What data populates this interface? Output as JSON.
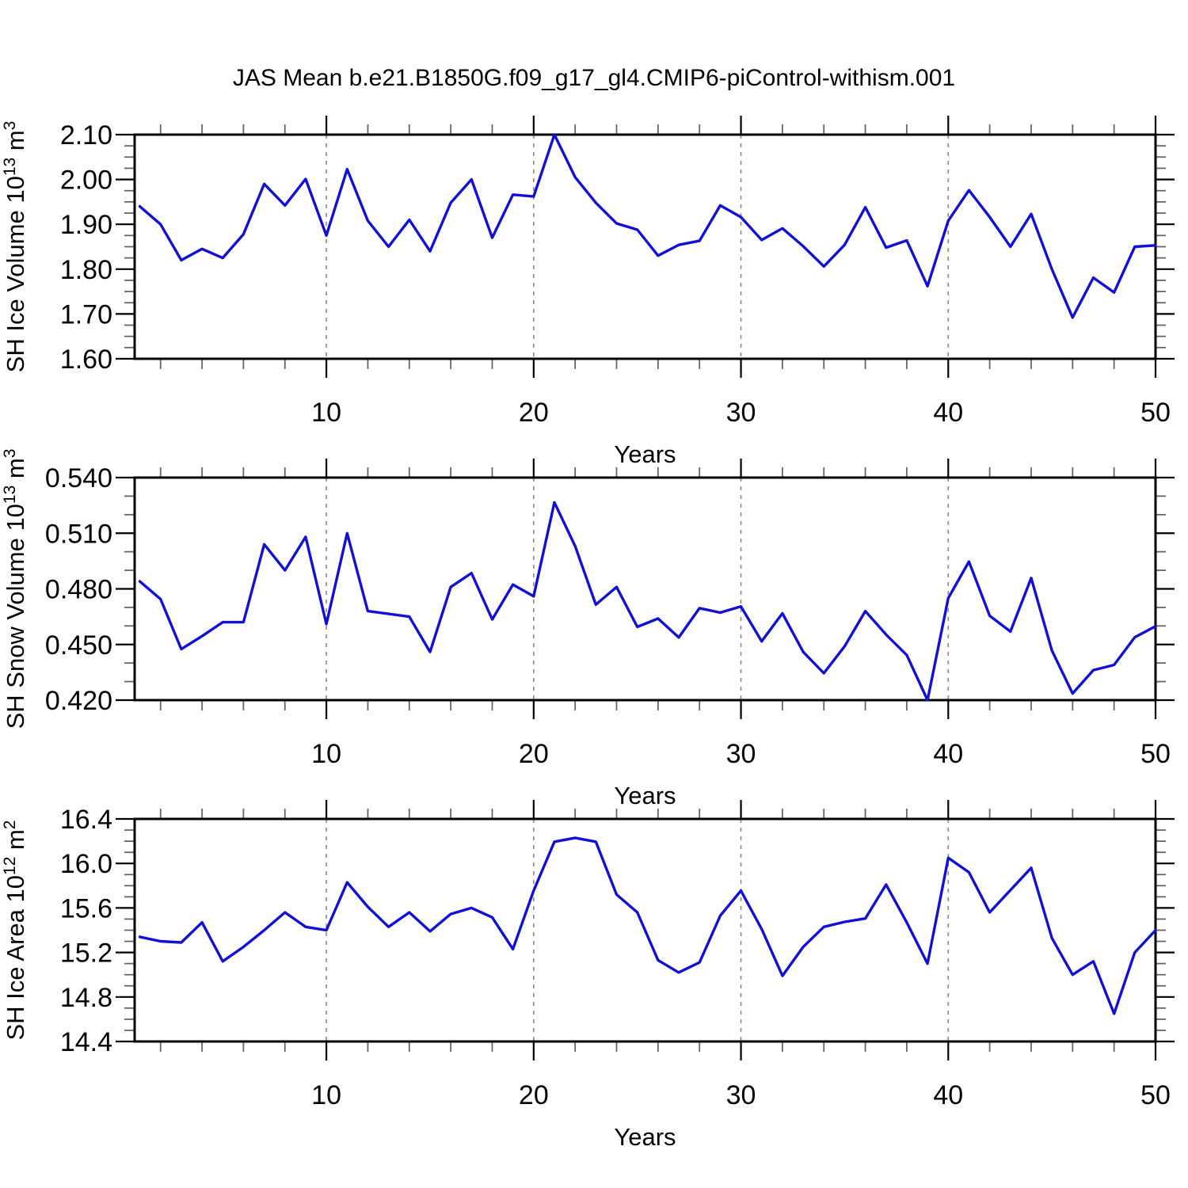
{
  "chart_data": {
    "type": "line",
    "title": "JAS Mean b.e21.B1850G.f09_g17_gl4.CMIP6-piControl-withism.001",
    "xlabel": "Years",
    "x": [
      1,
      2,
      3,
      4,
      5,
      6,
      7,
      8,
      9,
      10,
      11,
      12,
      13,
      14,
      15,
      16,
      17,
      18,
      19,
      20,
      21,
      22,
      23,
      24,
      25,
      26,
      27,
      28,
      29,
      30,
      31,
      32,
      33,
      34,
      35,
      36,
      37,
      38,
      39,
      40,
      41,
      42,
      43,
      44,
      45,
      46,
      47,
      48,
      49,
      50
    ],
    "x_range": [
      0.75,
      50
    ],
    "x_major_ticks": [
      10,
      20,
      30,
      40,
      50
    ],
    "x_major_labels": [
      "10",
      "20",
      "30",
      "40",
      "50"
    ],
    "x_minor_step": 2,
    "vertical_gridlines": [
      10,
      20,
      30,
      40
    ],
    "grid_style": "dashed",
    "legend": "none",
    "line_color": "#1010d8",
    "axis_color": "#000000",
    "minor_tick_color": "#666666",
    "grid_color": "#8a8a8a",
    "panels": [
      {
        "name": "sh-ice-volume",
        "ylabel_text": "SH Ice Volume 10^13 m^3",
        "ylabel_parts": [
          {
            "text": "SH Ice Volume 10",
            "sup": false
          },
          {
            "text": "13",
            "sup": true
          },
          {
            "text": " m",
            "sup": false
          },
          {
            "text": "3",
            "sup": true
          }
        ],
        "y_range": [
          1.6,
          2.1
        ],
        "y_major_ticks": [
          1.6,
          1.7,
          1.8,
          1.9,
          2.0,
          2.1
        ],
        "y_tick_labels": [
          "1.60",
          "1.70",
          "1.80",
          "1.90",
          "2.00",
          "2.10"
        ],
        "y_minor_step": 0.025,
        "values": [
          1.94,
          1.9,
          1.82,
          1.845,
          1.825,
          1.878,
          1.99,
          1.942,
          2.001,
          1.875,
          2.023,
          1.908,
          1.85,
          1.91,
          1.84,
          1.948,
          2.0,
          1.87,
          1.966,
          1.962,
          2.1,
          2.005,
          1.948,
          1.902,
          1.888,
          1.83,
          1.854,
          1.863,
          1.942,
          1.916,
          1.865,
          1.891,
          1.851,
          1.806,
          1.854,
          1.938,
          1.848,
          1.864,
          1.762,
          1.908,
          1.976,
          1.916,
          1.85,
          1.923,
          1.8,
          1.692,
          1.781,
          1.748,
          1.85,
          1.853
        ]
      },
      {
        "name": "sh-snow-volume",
        "ylabel_text": "SH Snow Volume 10^13 m^3",
        "ylabel_parts": [
          {
            "text": "SH Snow Volume 10",
            "sup": false
          },
          {
            "text": "13",
            "sup": true
          },
          {
            "text": " m",
            "sup": false
          },
          {
            "text": "3",
            "sup": true
          }
        ],
        "y_range": [
          0.42,
          0.54
        ],
        "y_major_ticks": [
          0.42,
          0.45,
          0.48,
          0.51,
          0.54
        ],
        "y_tick_labels": [
          "0.420",
          "0.450",
          "0.480",
          "0.510",
          "0.540"
        ],
        "y_minor_step": 0.01,
        "values": [
          0.484,
          0.4745,
          0.4475,
          0.4545,
          0.462,
          0.462,
          0.504,
          0.49,
          0.508,
          0.461,
          0.51,
          0.468,
          0.4665,
          0.465,
          0.446,
          0.481,
          0.4885,
          0.4635,
          0.4823,
          0.476,
          0.5266,
          0.503,
          0.4715,
          0.481,
          0.4595,
          0.464,
          0.4538,
          0.4696,
          0.4672,
          0.4705,
          0.4517,
          0.4668,
          0.446,
          0.4345,
          0.449,
          0.468,
          0.4553,
          0.4443,
          0.42,
          0.475,
          0.4947,
          0.4655,
          0.457,
          0.4858,
          0.4468,
          0.4236,
          0.4362,
          0.439,
          0.4539,
          0.4598
        ]
      },
      {
        "name": "sh-ice-area",
        "ylabel_text": "SH Ice Area 10^12 m^2",
        "ylabel_parts": [
          {
            "text": "SH Ice Area 10",
            "sup": false
          },
          {
            "text": "12",
            "sup": true
          },
          {
            "text": " m",
            "sup": false
          },
          {
            "text": "2",
            "sup": true
          }
        ],
        "y_range": [
          14.4,
          16.4
        ],
        "y_major_ticks": [
          14.4,
          14.8,
          15.2,
          15.6,
          16.0,
          16.4
        ],
        "y_tick_labels": [
          "14.4",
          "14.8",
          "15.2",
          "15.6",
          "16.0",
          "16.4"
        ],
        "y_minor_step": 0.1,
        "values": [
          15.34,
          15.3,
          15.29,
          15.47,
          15.12,
          15.25,
          15.4,
          15.56,
          15.43,
          15.4,
          15.83,
          15.61,
          15.43,
          15.56,
          15.39,
          15.545,
          15.6,
          15.515,
          15.23,
          15.755,
          16.195,
          16.23,
          16.195,
          15.72,
          15.56,
          15.13,
          15.02,
          15.11,
          15.53,
          15.755,
          15.41,
          14.99,
          15.25,
          15.43,
          15.475,
          15.505,
          15.81,
          15.47,
          15.1,
          16.05,
          15.92,
          15.56,
          15.76,
          15.96,
          15.33,
          15.0,
          15.12,
          14.65,
          15.2,
          15.4
        ]
      }
    ]
  }
}
